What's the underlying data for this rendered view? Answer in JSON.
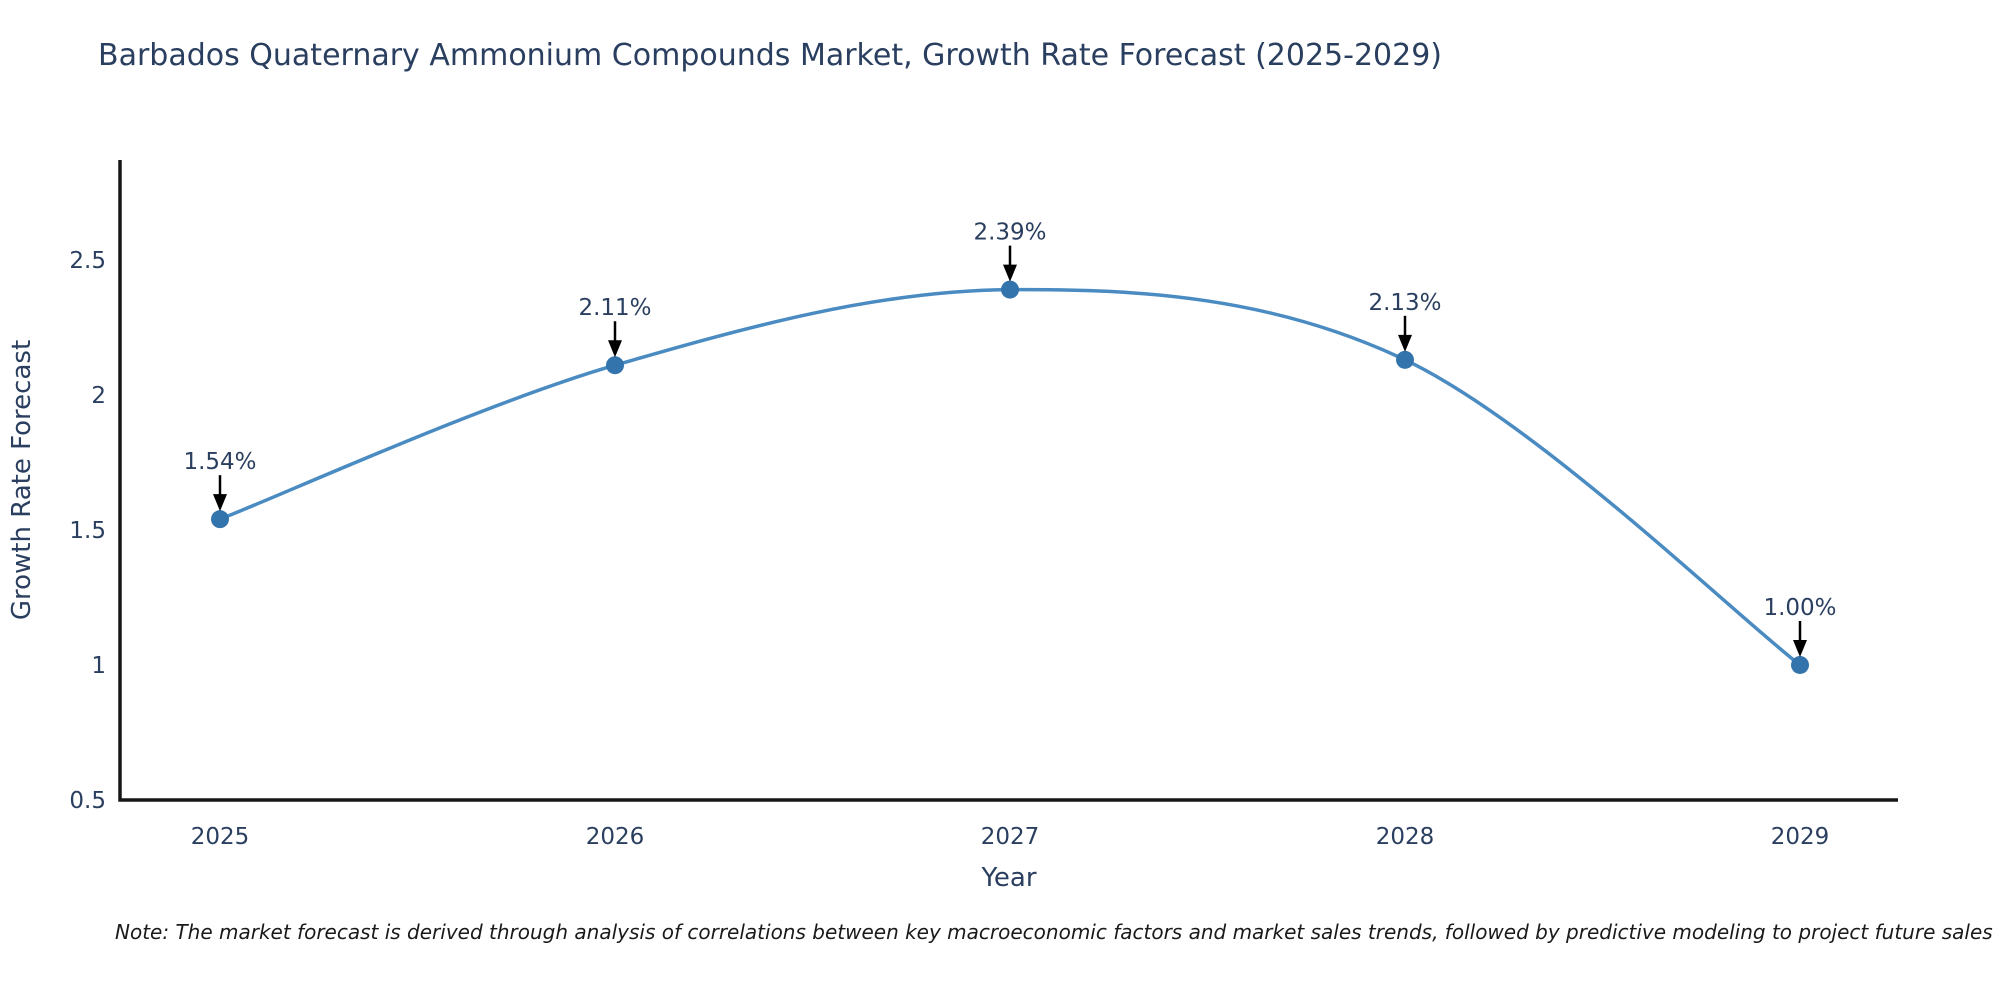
{
  "page": {
    "background": "#ffffff"
  },
  "header": {
    "title": "Barbados Quaternary Ammonium Compounds Market, Growth Rate Forecast (2025-2029)"
  },
  "chart_data": {
    "type": "line",
    "title": "Barbados Quaternary Ammonium Compounds Market, Growth Rate Forecast (2025-2029)",
    "x": [
      2025,
      2026,
      2027,
      2028,
      2029
    ],
    "categories": [
      "2025",
      "2026",
      "2027",
      "2028",
      "2029"
    ],
    "values": [
      1.54,
      2.11,
      2.39,
      2.13,
      1.0
    ],
    "point_labels": [
      "1.54%",
      "2.11%",
      "2.39%",
      "2.13%",
      "1.00%"
    ],
    "xlabel": "Year",
    "ylabel": "Growth Rate Forecast",
    "ylim": [
      0.5,
      2.87
    ],
    "yticks": [
      0.5,
      1,
      1.5,
      2,
      2.5
    ],
    "ytick_labels": [
      "0.5",
      "1",
      "1.5",
      "2",
      "2.5"
    ],
    "grid": false,
    "legend": "none",
    "line_style": "smooth-spline",
    "marker_style": "circle",
    "annotation_arrows": true,
    "colors": {
      "line": "#4a8bc2",
      "marker": "#3474ad",
      "axis": "#161616",
      "text": "#2a3f5f",
      "arrow": "#000000"
    }
  },
  "footer": {
    "note": "Note: The market forecast is derived through analysis of correlations between key macroeconomic factors and market sales trends, followed by predictive modeling to project future sales"
  }
}
